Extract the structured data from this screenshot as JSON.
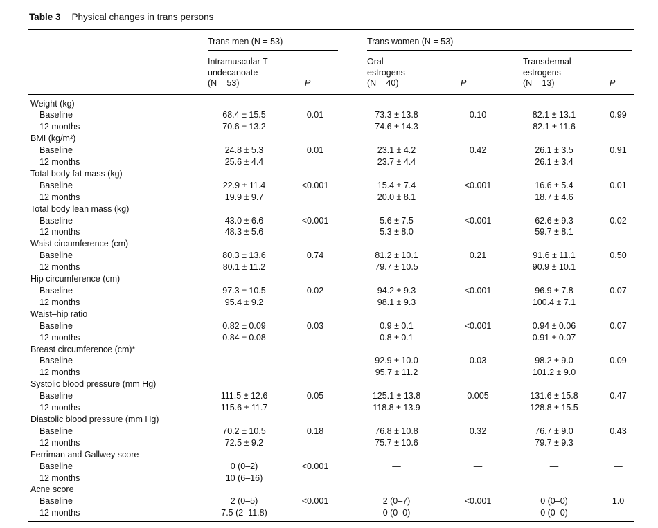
{
  "caption": {
    "label": "Table 3",
    "title": "Physical changes in trans persons"
  },
  "table": {
    "groups": [
      {
        "label": "Trans men (N = 53)"
      },
      {
        "label": "Trans women (N = 53)"
      }
    ],
    "columns": [
      {
        "label": "Intramuscular T\nundecanoate\n(N = 53)"
      },
      {
        "label": "P"
      },
      {
        "label": "Oral\nestrogens\n(N = 40)"
      },
      {
        "label": "P"
      },
      {
        "label": "Transdermal\nestrogens\n(N = 13)"
      },
      {
        "label": "P"
      }
    ],
    "sections": [
      {
        "label": "Weight (kg)",
        "rows": [
          {
            "label": "Baseline",
            "values": [
              "68.4 ± 15.5",
              "0.01",
              "73.3 ± 13.8",
              "0.10",
              "82.1 ± 13.1",
              "0.99"
            ]
          },
          {
            "label": "12 months",
            "values": [
              "70.6 ± 13.2",
              "",
              "74.6 ± 14.3",
              "",
              "82.1 ± 11.6",
              ""
            ]
          }
        ]
      },
      {
        "label": "BMI (kg/m²)",
        "rows": [
          {
            "label": "Baseline",
            "values": [
              "24.8 ± 5.3",
              "0.01",
              "23.1 ± 4.2",
              "0.42",
              "26.1 ± 3.5",
              "0.91"
            ]
          },
          {
            "label": "12 months",
            "values": [
              "25.6 ± 4.4",
              "",
              "23.7 ± 4.4",
              "",
              "26.1 ± 3.4",
              ""
            ]
          }
        ]
      },
      {
        "label": "Total body fat mass (kg)",
        "rows": [
          {
            "label": "Baseline",
            "values": [
              "22.9 ± 11.4",
              "<0.001",
              "15.4 ± 7.4",
              "<0.001",
              "16.6 ± 5.4",
              "0.01"
            ]
          },
          {
            "label": "12 months",
            "values": [
              "19.9 ± 9.7",
              "",
              "20.0 ± 8.1",
              "",
              "18.7 ± 4.6",
              ""
            ]
          }
        ]
      },
      {
        "label": "Total body lean mass (kg)",
        "rows": [
          {
            "label": "Baseline",
            "values": [
              "43.0 ± 6.6",
              "<0.001",
              "5.6 ± 7.5",
              "<0.001",
              "62.6 ± 9.3",
              "0.02"
            ]
          },
          {
            "label": "12 months",
            "values": [
              "48.3 ± 5.6",
              "",
              "5.3 ± 8.0",
              "",
              "59.7 ± 8.1",
              ""
            ]
          }
        ]
      },
      {
        "label": "Waist circumference (cm)",
        "rows": [
          {
            "label": "Baseline",
            "values": [
              "80.3 ± 13.6",
              "0.74",
              "81.2 ± 10.1",
              "0.21",
              "91.6 ± 11.1",
              "0.50"
            ]
          },
          {
            "label": "12 months",
            "values": [
              "80.1 ± 11.2",
              "",
              "79.7 ± 10.5",
              "",
              "90.9 ± 10.1",
              ""
            ]
          }
        ]
      },
      {
        "label": "Hip circumference (cm)",
        "rows": [
          {
            "label": "Baseline",
            "values": [
              "97.3 ± 10.5",
              "0.02",
              "94.2 ± 9.3",
              "<0.001",
              "96.9 ± 7.8",
              "0.07"
            ]
          },
          {
            "label": "12 months",
            "values": [
              "95.4 ± 9.2",
              "",
              "98.1 ± 9.3",
              "",
              "100.4 ± 7.1",
              ""
            ]
          }
        ]
      },
      {
        "label": "Waist–hip ratio",
        "rows": [
          {
            "label": "Baseline",
            "values": [
              "0.82 ± 0.09",
              "0.03",
              "0.9 ± 0.1",
              "<0.001",
              "0.94 ± 0.06",
              "0.07"
            ]
          },
          {
            "label": "12 months",
            "values": [
              "0.84 ± 0.08",
              "",
              "0.8 ± 0.1",
              "",
              "0.91 ± 0.07",
              ""
            ]
          }
        ]
      },
      {
        "label": "Breast circumference (cm)*",
        "rows": [
          {
            "label": "Baseline",
            "values": [
              "—",
              "—",
              "92.9 ± 10.0",
              "0.03",
              "98.2 ± 9.0",
              "0.09"
            ]
          },
          {
            "label": "12 months",
            "values": [
              "",
              "",
              "95.7 ± 11.2",
              "",
              "101.2 ± 9.0",
              ""
            ]
          }
        ]
      },
      {
        "label": "Systolic blood pressure (mm Hg)",
        "rows": [
          {
            "label": "Baseline",
            "values": [
              "111.5 ± 12.6",
              "0.05",
              "125.1 ± 13.8",
              "0.005",
              "131.6 ± 15.8",
              "0.47"
            ]
          },
          {
            "label": "12 months",
            "values": [
              "115.6 ± 11.7",
              "",
              "118.8 ± 13.9",
              "",
              "128.8 ± 15.5",
              ""
            ]
          }
        ]
      },
      {
        "label": "Diastolic blood pressure (mm Hg)",
        "rows": [
          {
            "label": "Baseline",
            "values": [
              "70.2 ± 10.5",
              "0.18",
              "76.8 ± 10.8",
              "0.32",
              "76.7 ± 9.0",
              "0.43"
            ]
          },
          {
            "label": "12 months",
            "values": [
              "72.5 ± 9.2",
              "",
              "75.7 ± 10.6",
              "",
              "79.7 ± 9.3",
              ""
            ]
          }
        ]
      },
      {
        "label": "Ferriman and Gallwey score",
        "rows": [
          {
            "label": "Baseline",
            "values": [
              "0 (0–2)",
              "<0.001",
              "—",
              "—",
              "—",
              "—"
            ]
          },
          {
            "label": "12 months",
            "values": [
              "10 (6–16)",
              "",
              "",
              "",
              "",
              ""
            ]
          }
        ]
      },
      {
        "label": "Acne score",
        "rows": [
          {
            "label": "Baseline",
            "values": [
              "2 (0–5)",
              "<0.001",
              "2 (0–7)",
              "<0.001",
              "0 (0–0)",
              "1.0"
            ]
          },
          {
            "label": "12 months",
            "values": [
              "7.5 (2–11.8)",
              "",
              "0 (0–0)",
              "",
              "0 (0–0)",
              ""
            ]
          }
        ]
      }
    ]
  }
}
